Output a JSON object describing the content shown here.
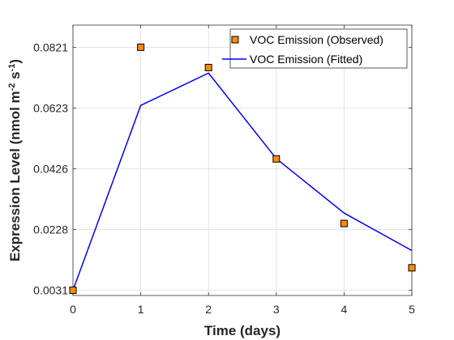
{
  "chart_data": {
    "type": "line",
    "title": "",
    "xlabel": "Time (days)",
    "ylabel": {
      "main": "Expression Level (nmol m",
      "sup1": "-2",
      "mid": " s",
      "sup2": "-1",
      "end": ")"
    },
    "xlim": [
      0,
      5
    ],
    "ylim": [
      0.0014,
      0.0893
    ],
    "x_ticks": [
      0,
      1,
      2,
      3,
      4,
      5
    ],
    "y_ticks": [
      0.0031,
      0.0228,
      0.0426,
      0.0623,
      0.0821
    ],
    "x_tick_labels": [
      "0",
      "1",
      "2",
      "3",
      "4",
      "5"
    ],
    "y_tick_labels": [
      "0.0031",
      "0.0228",
      "0.0426",
      "0.0623",
      "0.0821"
    ],
    "grid": true,
    "legend_position": "top-right",
    "series": [
      {
        "name": "VOC Emission (Observed)",
        "kind": "markers",
        "marker": "square",
        "color": "#ff8c00",
        "edge_color": "#000000",
        "x": [
          0,
          1,
          2,
          3,
          4,
          5
        ],
        "y": [
          0.0031,
          0.0821,
          0.0755,
          0.0458,
          0.0248,
          0.0104
        ]
      },
      {
        "name": "VOC Emission (Fitted)",
        "kind": "line",
        "color": "#0000ff",
        "x": [
          0,
          1,
          2,
          3,
          4,
          5
        ],
        "y": [
          0.0031,
          0.0632,
          0.0737,
          0.0459,
          0.0282,
          0.016
        ]
      }
    ]
  }
}
